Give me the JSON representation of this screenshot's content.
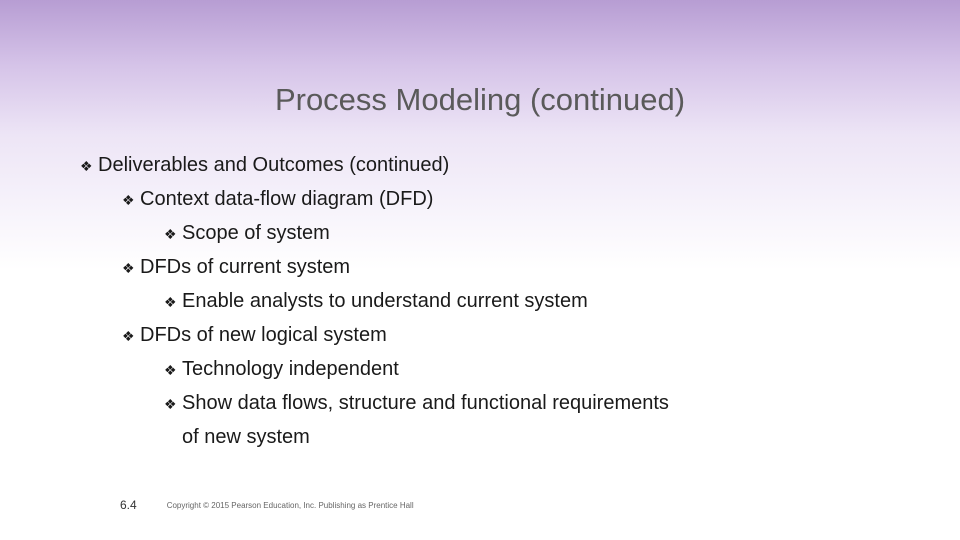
{
  "slide": {
    "title": "Process Modeling (continued)",
    "bullets": {
      "l1_1": "Deliverables and Outcomes (continued)",
      "l2_1": "Context data-flow diagram (DFD)",
      "l3_1": "Scope of system",
      "l2_2": "DFDs of current system",
      "l3_2": "Enable analysts to understand current system",
      "l2_3": "DFDs of new logical system",
      "l3_3": "Technology independent",
      "l3_4a": "Show data flows, structure and functional requirements",
      "l3_4b": "of new system"
    },
    "bullet_marker": "❖",
    "page_number": "6.4",
    "copyright": "Copyright © 2015 Pearson Education, Inc. Publishing as Prentice Hall"
  },
  "style": {
    "gradient_top": "#b79dd3",
    "gradient_mid": "#ede5f6",
    "gradient_bottom": "#ffffff",
    "title_color": "#5a5a5a",
    "text_color": "#1a1a1a",
    "title_fontsize": 31,
    "body_fontsize": 20,
    "footer_fontsize": 8,
    "pagenum_fontsize": 12,
    "font_family": "Arial"
  }
}
